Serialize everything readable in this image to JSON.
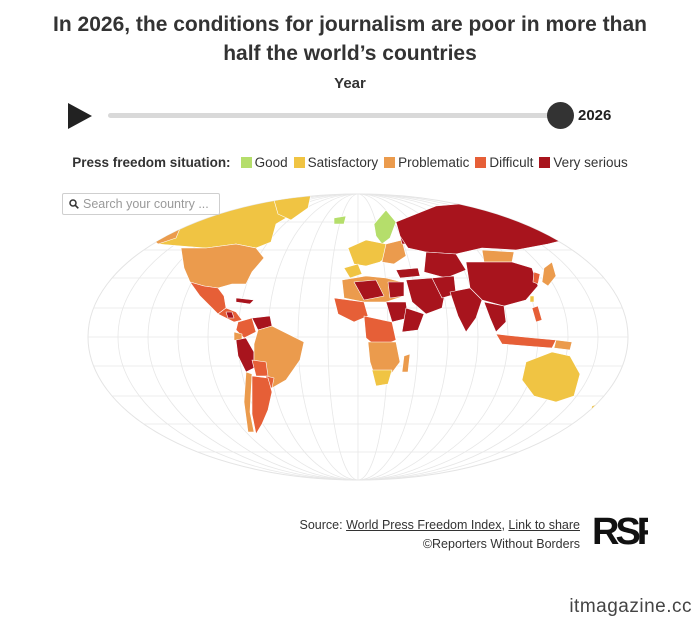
{
  "title_line1": "In 2026, the conditions for journalism are poor in more than",
  "title_line2": "half the world’s countries",
  "year_control": {
    "label": "Year",
    "value": "2026",
    "progress": 1.0
  },
  "legend": {
    "title": "Press freedom situation:",
    "items": [
      {
        "label": "Good",
        "color": "#b5de6b"
      },
      {
        "label": "Satisfactory",
        "color": "#f0c443"
      },
      {
        "label": "Problematic",
        "color": "#eb9b4d"
      },
      {
        "label": "Difficult",
        "color": "#e65f37"
      },
      {
        "label": "Very serious",
        "color": "#a8141d"
      }
    ]
  },
  "search": {
    "placeholder": "Search your country ..."
  },
  "source": {
    "prefix": "Source:",
    "link1": "World Press Freedom Index",
    "separator": ",",
    "link2": "Link to share",
    "copyright": "©Reporters Without Borders"
  },
  "logo_text": "RSF",
  "watermark": "itmagazine.cc"
}
